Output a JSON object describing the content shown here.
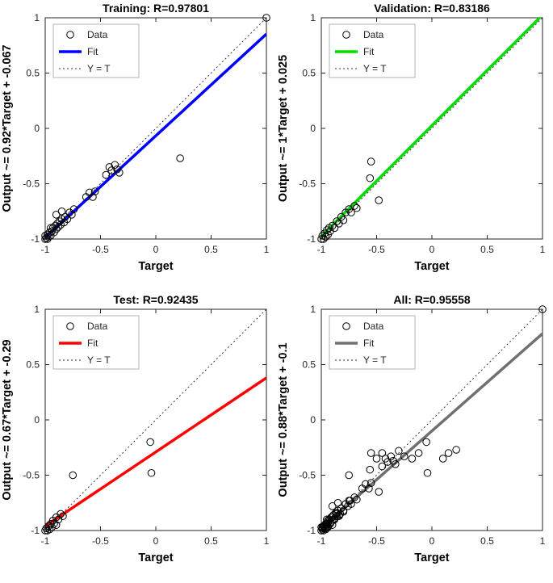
{
  "figure": {
    "background": "#ffffff"
  },
  "chart_data": [
    {
      "type": "scatter",
      "title": "Training: R=0.97801",
      "xlabel": "Target",
      "ylabel": "Output ~= 0.92*Target + -0.067",
      "fit": {
        "slope": 0.92,
        "intercept": -0.067
      },
      "fit_color": "#0000ff",
      "marker_color": "#000000",
      "identity_line_style": "dotted",
      "xlim": [
        -1,
        1
      ],
      "ylim": [
        -1,
        1
      ],
      "xticks": [
        -1,
        -0.5,
        0,
        0.5,
        1
      ],
      "xtick_labels": [
        "-1",
        "-0.5",
        "0",
        "0.5",
        "1"
      ],
      "yticks": [
        -1,
        -0.5,
        0,
        0.5,
        1
      ],
      "ytick_labels": [
        "-1",
        "-0.5",
        "0",
        "0.5",
        "1"
      ],
      "legend": [
        "Data",
        "Fit",
        "Y = T"
      ],
      "legend_position": "upper-left",
      "points": [
        [
          -1,
          -1
        ],
        [
          -1,
          -0.97
        ],
        [
          -0.99,
          -0.99
        ],
        [
          -0.98,
          -0.96
        ],
        [
          -0.98,
          -1
        ],
        [
          -0.97,
          -0.98
        ],
        [
          -0.96,
          -0.94
        ],
        [
          -0.95,
          -0.97
        ],
        [
          -0.95,
          -0.9
        ],
        [
          -0.94,
          -0.93
        ],
        [
          -0.93,
          -0.9
        ],
        [
          -0.92,
          -0.94
        ],
        [
          -0.91,
          -0.88
        ],
        [
          -0.9,
          -0.91
        ],
        [
          -0.89,
          -0.86
        ],
        [
          -0.88,
          -0.89
        ],
        [
          -0.87,
          -0.84
        ],
        [
          -0.86,
          -0.87
        ],
        [
          -0.85,
          -0.82
        ],
        [
          -0.83,
          -0.85
        ],
        [
          -0.82,
          -0.8
        ],
        [
          -0.8,
          -0.82
        ],
        [
          -0.78,
          -0.76
        ],
        [
          -0.76,
          -0.78
        ],
        [
          -0.74,
          -0.73
        ],
        [
          -0.9,
          -0.78
        ],
        [
          -0.85,
          -0.75
        ],
        [
          -0.63,
          -0.62
        ],
        [
          -0.6,
          -0.58
        ],
        [
          -0.57,
          -0.62
        ],
        [
          -0.55,
          -0.57
        ],
        [
          -0.45,
          -0.42
        ],
        [
          -0.42,
          -0.35
        ],
        [
          -0.4,
          -0.38
        ],
        [
          -0.37,
          -0.33
        ],
        [
          -0.35,
          -0.37
        ],
        [
          -0.33,
          -0.4
        ],
        [
          0.22,
          -0.27
        ],
        [
          1,
          1
        ]
      ]
    },
    {
      "type": "scatter",
      "title": "Validation: R=0.83186",
      "xlabel": "Target",
      "ylabel": "Output ~= 1*Target + 0.025",
      "fit": {
        "slope": 1,
        "intercept": 0.025
      },
      "fit_color": "#00dd00",
      "marker_color": "#000000",
      "identity_line_style": "dotted",
      "xlim": [
        -1,
        1
      ],
      "ylim": [
        -1,
        1
      ],
      "xticks": [
        -1,
        -0.5,
        0,
        0.5,
        1
      ],
      "xtick_labels": [
        "-1",
        "-0.5",
        "0",
        "0.5",
        "1"
      ],
      "yticks": [
        -1,
        -0.5,
        0,
        0.5,
        1
      ],
      "ytick_labels": [
        "-1",
        "-0.5",
        "0",
        "0.5",
        "1"
      ],
      "legend": [
        "Data",
        "Fit",
        "Y = T"
      ],
      "legend_position": "upper-left",
      "points": [
        [
          -1,
          -1
        ],
        [
          -0.99,
          -0.97
        ],
        [
          -0.98,
          -1
        ],
        [
          -0.97,
          -0.95
        ],
        [
          -0.96,
          -0.98
        ],
        [
          -0.95,
          -0.92
        ],
        [
          -0.94,
          -0.96
        ],
        [
          -0.93,
          -0.9
        ],
        [
          -0.92,
          -0.93
        ],
        [
          -0.9,
          -0.88
        ],
        [
          -0.88,
          -0.9
        ],
        [
          -0.86,
          -0.84
        ],
        [
          -0.84,
          -0.86
        ],
        [
          -0.82,
          -0.8
        ],
        [
          -0.8,
          -0.83
        ],
        [
          -0.78,
          -0.76
        ],
        [
          -0.75,
          -0.73
        ],
        [
          -0.73,
          -0.76
        ],
        [
          -0.7,
          -0.7
        ],
        [
          -0.68,
          -0.72
        ],
        [
          -0.55,
          -0.3
        ],
        [
          -0.56,
          -0.45
        ],
        [
          -0.48,
          -0.65
        ]
      ]
    },
    {
      "type": "scatter",
      "title": "Test: R=0.92435",
      "xlabel": "Target",
      "ylabel": "Output ~= 0.67*Target + -0.29",
      "fit": {
        "slope": 0.67,
        "intercept": -0.29
      },
      "fit_color": "#ff0000",
      "marker_color": "#000000",
      "identity_line_style": "dotted",
      "xlim": [
        -1,
        1
      ],
      "ylim": [
        -1,
        1
      ],
      "xticks": [
        -1,
        -0.5,
        0,
        0.5,
        1
      ],
      "xtick_labels": [
        "-1",
        "-0.5",
        "0",
        "0.5",
        "1"
      ],
      "yticks": [
        -1,
        -0.5,
        0,
        0.5,
        1
      ],
      "ytick_labels": [
        "-1",
        "-0.5",
        "0",
        "0.5",
        "1"
      ],
      "legend": [
        "Data",
        "Fit",
        "Y = T"
      ],
      "legend_position": "upper-left",
      "points": [
        [
          -1,
          -1
        ],
        [
          -0.99,
          -0.98
        ],
        [
          -0.98,
          -1
        ],
        [
          -0.97,
          -0.96
        ],
        [
          -0.96,
          -0.99
        ],
        [
          -0.95,
          -0.94
        ],
        [
          -0.94,
          -0.97
        ],
        [
          -0.93,
          -0.91
        ],
        [
          -0.92,
          -0.94
        ],
        [
          -0.9,
          -0.88
        ],
        [
          -0.88,
          -0.9
        ],
        [
          -0.86,
          -0.85
        ],
        [
          -0.84,
          -0.87
        ],
        [
          -0.9,
          -0.95
        ],
        [
          -0.75,
          -0.5
        ],
        [
          -0.05,
          -0.2
        ],
        [
          -0.04,
          -0.48
        ]
      ]
    },
    {
      "type": "scatter",
      "title": "All: R=0.95558",
      "xlabel": "Target",
      "ylabel": "Output ~= 0.88*Target + -0.1",
      "fit": {
        "slope": 0.88,
        "intercept": -0.1
      },
      "fit_color": "#707070",
      "marker_color": "#000000",
      "identity_line_style": "dotted",
      "xlim": [
        -1,
        1
      ],
      "ylim": [
        -1,
        1
      ],
      "xticks": [
        -1,
        -0.5,
        0,
        0.5,
        1
      ],
      "xtick_labels": [
        "-1",
        "-0.5",
        "0",
        "0.5",
        "1"
      ],
      "yticks": [
        -1,
        -0.5,
        0,
        0.5,
        1
      ],
      "ytick_labels": [
        "-1",
        "-0.5",
        "0",
        "0.5",
        "1"
      ],
      "legend": [
        "Data",
        "Fit",
        "Y = T"
      ],
      "legend_position": "upper-left",
      "points": [
        [
          -1,
          -1
        ],
        [
          -1,
          -0.97
        ],
        [
          -0.99,
          -0.99
        ],
        [
          -0.98,
          -0.96
        ],
        [
          -0.98,
          -1
        ],
        [
          -0.97,
          -0.98
        ],
        [
          -0.96,
          -0.94
        ],
        [
          -0.95,
          -0.97
        ],
        [
          -0.95,
          -0.9
        ],
        [
          -0.94,
          -0.93
        ],
        [
          -0.93,
          -0.9
        ],
        [
          -0.92,
          -0.94
        ],
        [
          -0.91,
          -0.88
        ],
        [
          -0.9,
          -0.91
        ],
        [
          -0.89,
          -0.86
        ],
        [
          -0.88,
          -0.89
        ],
        [
          -0.87,
          -0.84
        ],
        [
          -0.86,
          -0.87
        ],
        [
          -0.85,
          -0.82
        ],
        [
          -0.83,
          -0.85
        ],
        [
          -0.82,
          -0.8
        ],
        [
          -0.8,
          -0.82
        ],
        [
          -0.78,
          -0.76
        ],
        [
          -0.76,
          -0.78
        ],
        [
          -0.74,
          -0.73
        ],
        [
          -0.9,
          -0.78
        ],
        [
          -0.85,
          -0.75
        ],
        [
          -0.63,
          -0.62
        ],
        [
          -0.6,
          -0.58
        ],
        [
          -0.57,
          -0.62
        ],
        [
          -0.55,
          -0.57
        ],
        [
          -0.45,
          -0.42
        ],
        [
          -0.42,
          -0.35
        ],
        [
          -0.4,
          -0.38
        ],
        [
          -0.37,
          -0.33
        ],
        [
          -0.35,
          -0.37
        ],
        [
          -0.33,
          -0.4
        ],
        [
          0.22,
          -0.27
        ],
        [
          1,
          1
        ],
        [
          -0.99,
          -0.97
        ],
        [
          -0.97,
          -0.95
        ],
        [
          -0.96,
          -0.98
        ],
        [
          -0.95,
          -0.92
        ],
        [
          -0.94,
          -0.96
        ],
        [
          -0.93,
          -0.9
        ],
        [
          -0.92,
          -0.93
        ],
        [
          -0.88,
          -0.9
        ],
        [
          -0.86,
          -0.84
        ],
        [
          -0.84,
          -0.86
        ],
        [
          -0.82,
          -0.8
        ],
        [
          -0.8,
          -0.83
        ],
        [
          -0.78,
          -0.76
        ],
        [
          -0.75,
          -0.73
        ],
        [
          -0.73,
          -0.76
        ],
        [
          -0.7,
          -0.7
        ],
        [
          -0.68,
          -0.72
        ],
        [
          -0.55,
          -0.3
        ],
        [
          -0.56,
          -0.45
        ],
        [
          -0.48,
          -0.65
        ],
        [
          -0.99,
          -0.98
        ],
        [
          -0.97,
          -0.96
        ],
        [
          -0.96,
          -0.99
        ],
        [
          -0.95,
          -0.94
        ],
        [
          -0.94,
          -0.97
        ],
        [
          -0.93,
          -0.91
        ],
        [
          -0.92,
          -0.94
        ],
        [
          -0.9,
          -0.88
        ],
        [
          -0.86,
          -0.85
        ],
        [
          -0.84,
          -0.87
        ],
        [
          -0.9,
          -0.95
        ],
        [
          -0.75,
          -0.5
        ],
        [
          -0.05,
          -0.2
        ],
        [
          -0.04,
          -0.48
        ],
        [
          -0.5,
          -0.35
        ],
        [
          -0.45,
          -0.3
        ],
        [
          -0.3,
          -0.28
        ],
        [
          -0.25,
          -0.33
        ],
        [
          -0.18,
          -0.35
        ],
        [
          -0.12,
          -0.3
        ],
        [
          0.1,
          -0.35
        ],
        [
          0.15,
          -0.3
        ]
      ]
    }
  ]
}
